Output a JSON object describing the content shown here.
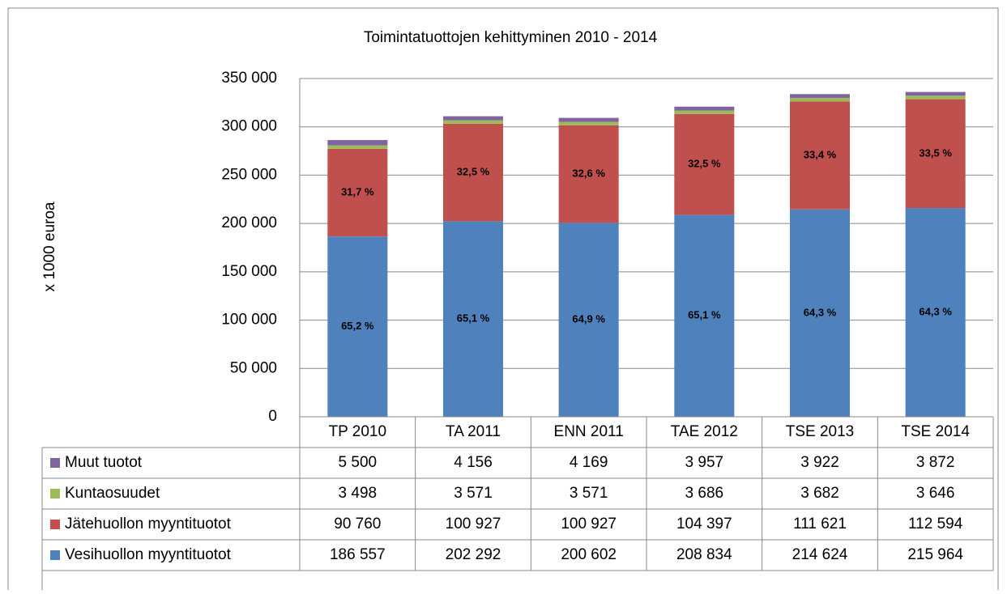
{
  "chart_data": {
    "type": "stacked_bar",
    "title": "Toimintatuottojen kehittyminen 2010 - 2014",
    "y_label": "x 1000 euroa",
    "categories": [
      "TP 2010",
      "TA 2011",
      "ENN 2011",
      "TAE 2012",
      "TSE 2013",
      "TSE 2014"
    ],
    "series": [
      {
        "name": "Vesihuollon myyntituotot",
        "color": "#4f81bd",
        "values": [
          186557,
          202292,
          200602,
          208834,
          214624,
          215964
        ],
        "value_labels": [
          "186 557",
          "202 292",
          "200 602",
          "208 834",
          "214 624",
          "215 964"
        ],
        "data_labels": [
          "65,2 %",
          "65,1 %",
          "64,9 %",
          "65,1 %",
          "64,3 %",
          "64,3 %"
        ]
      },
      {
        "name": "Jätehuollon myyntituotot",
        "color": "#c0504d",
        "values": [
          90760,
          100927,
          100927,
          104397,
          111621,
          112594
        ],
        "value_labels": [
          "90 760",
          "100 927",
          "100 927",
          "104 397",
          "111 621",
          "112 594"
        ],
        "data_labels": [
          "31,7 %",
          "32,5 %",
          "32,6 %",
          "32,5 %",
          "33,4 %",
          "33,5 %"
        ]
      },
      {
        "name": "Kuntaosuudet",
        "color": "#9bbb59",
        "values": [
          3498,
          3571,
          3571,
          3686,
          3682,
          3646
        ],
        "value_labels": [
          "3 498",
          "3 571",
          "3 571",
          "3 686",
          "3 682",
          "3 646"
        ]
      },
      {
        "name": "Muut tuotot",
        "color": "#8064a2",
        "values": [
          5500,
          4156,
          4169,
          3957,
          3922,
          3872
        ],
        "value_labels": [
          "5 500",
          "4 156",
          "4 169",
          "3 957",
          "3 922",
          "3 872"
        ]
      }
    ],
    "ylim": [
      0,
      350000
    ],
    "yticks": [
      0,
      {
        "value": 50000,
        "label": "50 000"
      },
      {
        "value": 100000,
        "label": "100 000"
      },
      {
        "value": 150000,
        "label": "150 000"
      },
      {
        "value": 200000,
        "label": "200 000"
      },
      {
        "value": 250000,
        "label": "250 000"
      },
      {
        "value": 300000,
        "label": "300 000"
      },
      {
        "value": 350000,
        "label": "350 000"
      }
    ],
    "grid": true
  }
}
